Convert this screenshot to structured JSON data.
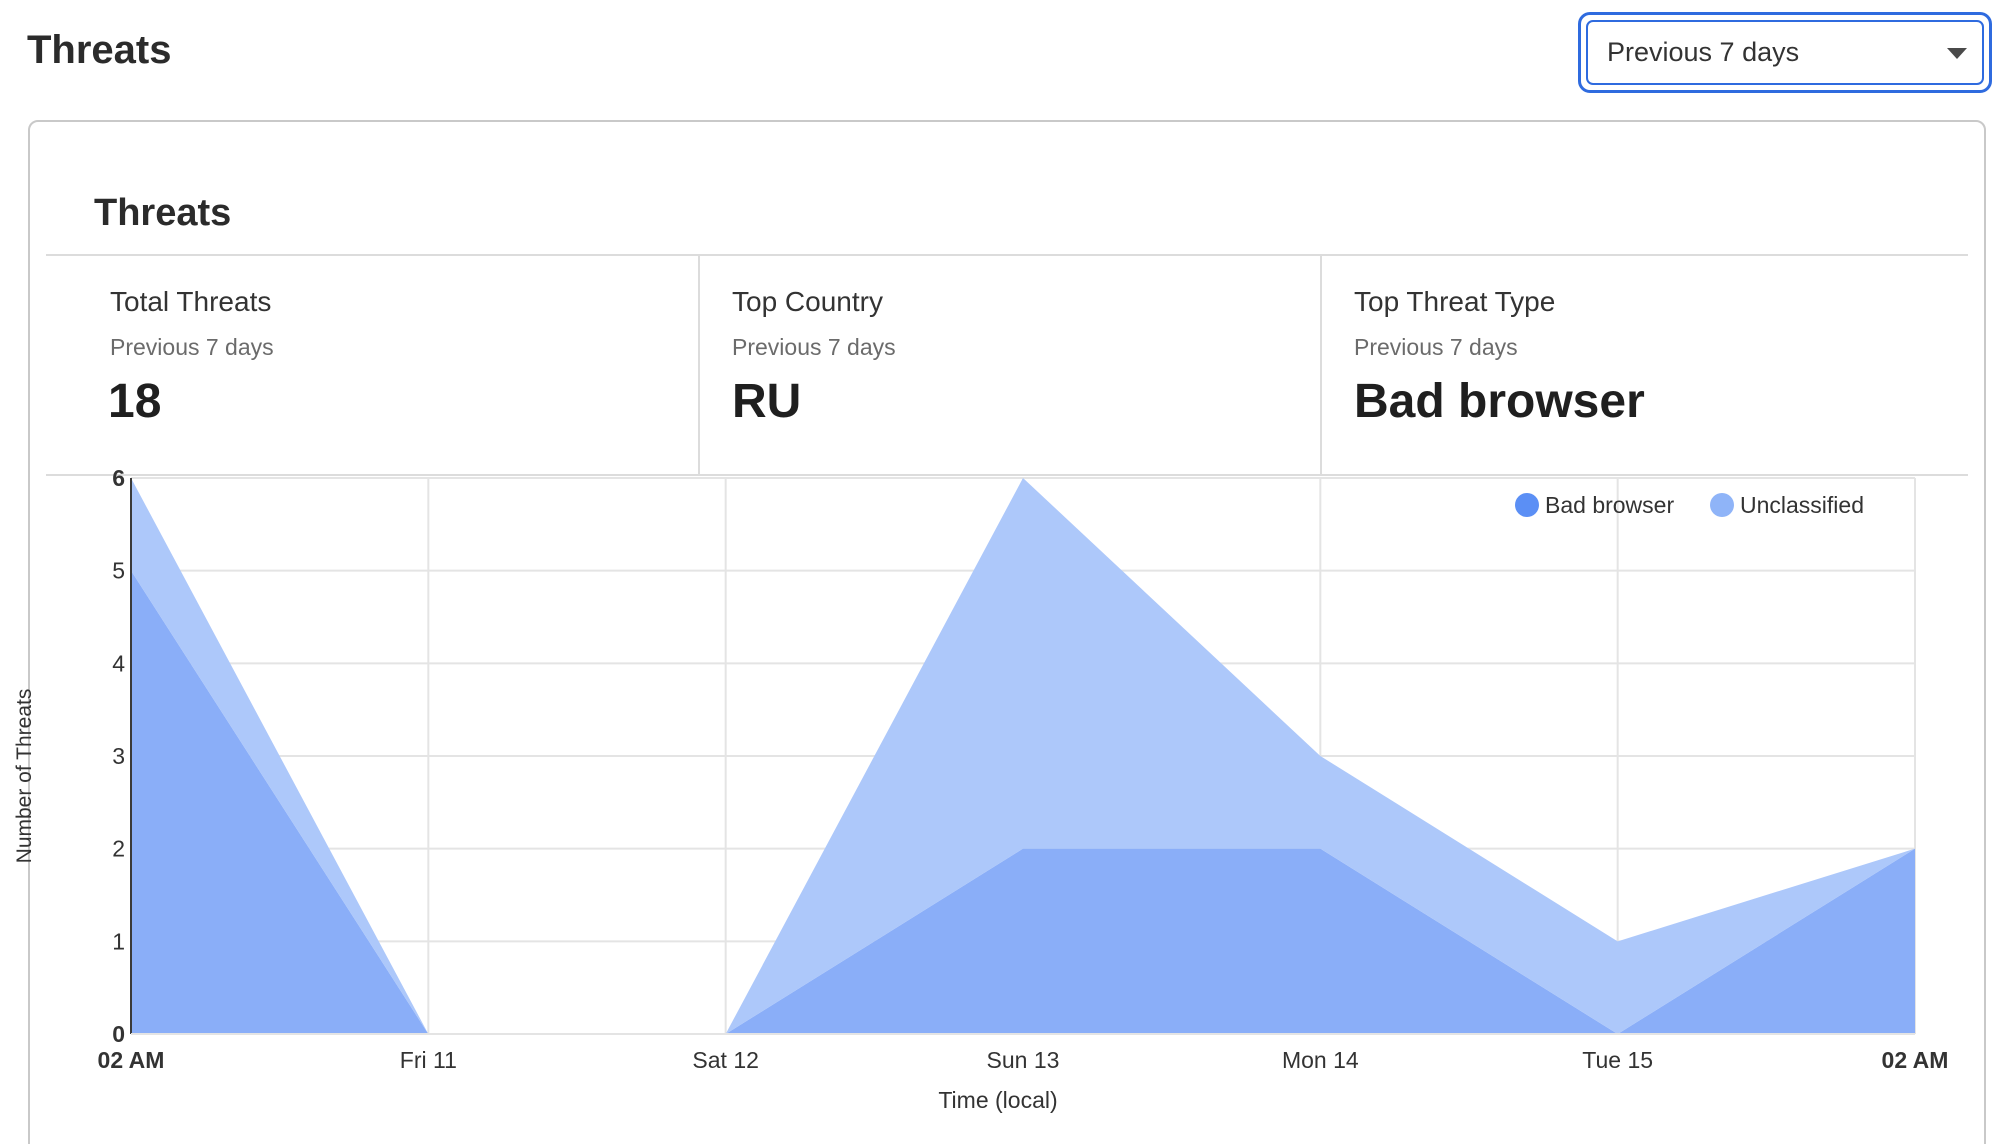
{
  "page": {
    "title": "Threats"
  },
  "range_select": {
    "value": "Previous 7 days"
  },
  "card": {
    "title": "Threats",
    "stats": [
      {
        "label": "Total Threats",
        "period": "Previous 7 days",
        "value": "18"
      },
      {
        "label": "Top Country",
        "period": "Previous 7 days",
        "value": "RU"
      },
      {
        "label": "Top Threat Type",
        "period": "Previous 7 days",
        "value": "Bad browser"
      }
    ]
  },
  "chart_data": {
    "type": "area",
    "stacked": true,
    "xlabel": "Time (local)",
    "ylabel": "Number of Threats",
    "ylim": [
      0,
      6
    ],
    "y_ticks": [
      0,
      1,
      2,
      3,
      4,
      5,
      6
    ],
    "grid": true,
    "legend_position": "top-right",
    "x_tick_labels": [
      "02 AM",
      "Fri 11",
      "Sat 12",
      "Sun 13",
      "Mon 14",
      "Tue 15",
      "02 AM"
    ],
    "x": [
      0,
      1,
      2,
      3,
      4,
      5,
      6
    ],
    "series": [
      {
        "name": "Bad browser",
        "color": "#8aaef8",
        "values": [
          5,
          0,
          0,
          2,
          2,
          0,
          2
        ]
      },
      {
        "name": "Unclassified",
        "color": "#adc8fa",
        "values": [
          1,
          0,
          0,
          4,
          1,
          1,
          0
        ]
      }
    ],
    "legend_marker_colors": [
      "#5b8ff5",
      "#8fb4f8"
    ]
  }
}
